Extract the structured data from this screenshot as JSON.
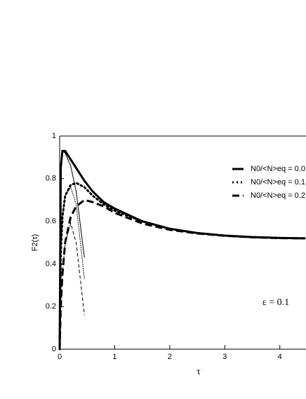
{
  "chart_data": {
    "type": "line",
    "x_label": "τ",
    "y_label": "F2(τ)",
    "annotation": "ε = 0.1",
    "x": [
      0,
      0.02,
      0.05,
      0.1,
      0.2,
      0.3,
      0.45,
      0.6,
      0.8,
      1,
      1.5,
      2,
      2.5,
      3,
      3.5,
      4,
      4.45
    ],
    "series": [
      {
        "name": "N0/<N>eq = 0.0",
        "color": "#000000",
        "linestyle": "solid",
        "linewidth": 3,
        "values": [
          0,
          0.85,
          0.93,
          0.93,
          0.89,
          0.85,
          0.79,
          0.74,
          0.69,
          0.66,
          0.6,
          0.565,
          0.545,
          0.533,
          0.526,
          0.522,
          0.52
        ]
      },
      {
        "name": "N0/<N>eq = 0.1",
        "color": "#000000",
        "linestyle": "dotted",
        "linewidth": 3,
        "values": [
          0,
          0.45,
          0.62,
          0.72,
          0.77,
          0.78,
          0.76,
          0.72,
          0.68,
          0.65,
          0.6,
          0.565,
          0.545,
          0.533,
          0.526,
          0.522,
          0.52
        ]
      },
      {
        "name": "N0/<N>eq = 0.2",
        "color": "#000000",
        "linestyle": "dashed",
        "linewidth": 3,
        "values": [
          0,
          0.2,
          0.35,
          0.5,
          0.62,
          0.67,
          0.7,
          0.69,
          0.67,
          0.64,
          0.59,
          0.56,
          0.543,
          0.532,
          0.525,
          0.521,
          0.52
        ]
      },
      {
        "color": "#000000",
        "linestyle": "solid",
        "linewidth": 1,
        "values": [
          0,
          0.85,
          0.93,
          0.92,
          0.86,
          0.74,
          0.43,
          null,
          null,
          null,
          null,
          null,
          null,
          null,
          null,
          null,
          null
        ]
      },
      {
        "color": "#000000",
        "linestyle": "dotted",
        "linewidth": 1,
        "values": [
          0,
          0.45,
          0.62,
          0.72,
          0.76,
          0.68,
          0.33,
          null,
          null,
          null,
          null,
          null,
          null,
          null,
          null,
          null,
          null
        ]
      },
      {
        "color": "#000000",
        "linestyle": "dashed",
        "linewidth": 1,
        "values": [
          0,
          0.2,
          0.35,
          0.5,
          0.59,
          0.5,
          0.16,
          null,
          null,
          null,
          null,
          null,
          null,
          null,
          null,
          null,
          null
        ]
      }
    ],
    "xlim": [
      0,
      4.45
    ],
    "ylim": [
      0,
      1
    ],
    "xticks": [
      0,
      1,
      2,
      3,
      4
    ],
    "yticks": [
      0,
      0.2,
      0.4,
      0.6,
      0.8,
      1
    ]
  }
}
